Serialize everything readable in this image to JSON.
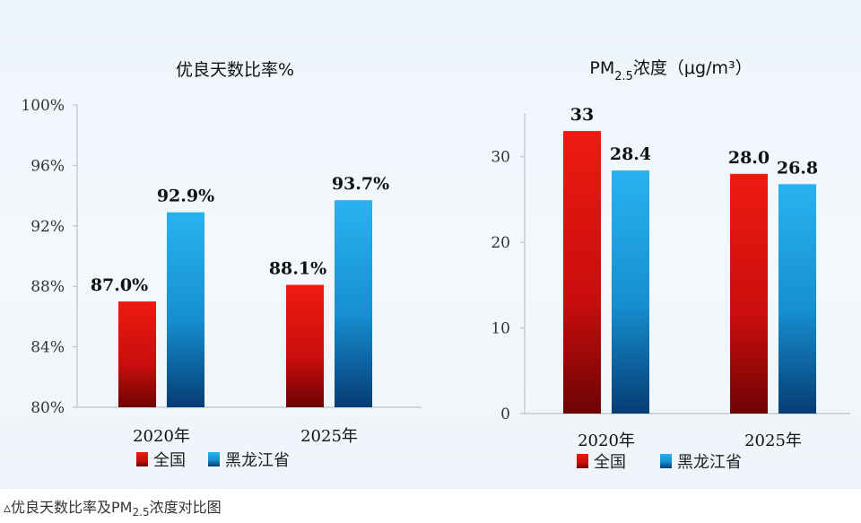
{
  "chart_data": [
    {
      "type": "bar",
      "title": "优良天数比率%",
      "categories": [
        "2020年",
        "2025年"
      ],
      "series": [
        {
          "name": "全国",
          "values": [
            87.0,
            88.1
          ],
          "labels": [
            "87.0%",
            "88.1%"
          ],
          "color": "#d9120f"
        },
        {
          "name": "黑龙江省",
          "values": [
            92.9,
            93.7
          ],
          "labels": [
            "92.9%",
            "93.7%"
          ],
          "color": "#1e9fd8"
        }
      ],
      "ylim": [
        80,
        100
      ],
      "yticks": [
        80,
        84,
        88,
        92,
        96,
        100
      ],
      "ytick_labels": [
        "80%",
        "84%",
        "88%",
        "92%",
        "96%",
        "100%"
      ],
      "legend_position": "bottom"
    },
    {
      "type": "bar",
      "title_main": "PM",
      "title_sub": "2.5",
      "title_rest": "浓度（μg/m³）",
      "categories": [
        "2020年",
        "2025年"
      ],
      "series": [
        {
          "name": "全国",
          "values": [
            33,
            28.0
          ],
          "labels": [
            "33",
            "28.0"
          ],
          "color": "#d9120f"
        },
        {
          "name": "黑龙江省",
          "values": [
            28.4,
            26.8
          ],
          "labels": [
            "28.4",
            "26.8"
          ],
          "color": "#1e9fd8"
        }
      ],
      "ylim": [
        0,
        35
      ],
      "yticks": [
        0,
        10,
        20,
        30
      ],
      "ytick_labels": [
        "0",
        "10",
        "20",
        "30"
      ],
      "legend_position": "bottom"
    }
  ],
  "caption": {
    "marker": "▵",
    "text_before": "优良天数比率及PM",
    "sub": "2.5",
    "text_after": "浓度对比图"
  }
}
